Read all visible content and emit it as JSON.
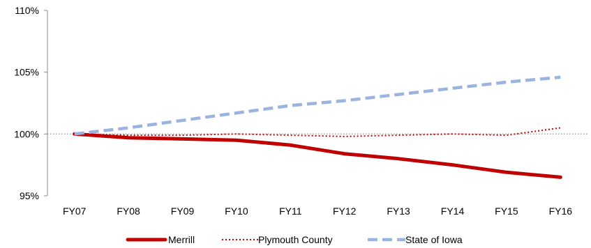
{
  "chart_data": {
    "type": "line",
    "title": "",
    "xlabel": "",
    "ylabel": "",
    "categories": [
      "FY07",
      "FY08",
      "FY09",
      "FY10",
      "FY11",
      "FY12",
      "FY13",
      "FY14",
      "FY15",
      "FY16"
    ],
    "ylim": [
      95,
      110
    ],
    "yticks": [
      95,
      100,
      105,
      110
    ],
    "ytick_labels": [
      "95%",
      "100%",
      "105%",
      "110%"
    ],
    "reference_line": 100,
    "grid": false,
    "legend_position": "bottom",
    "series": [
      {
        "name": "Merrill",
        "values": [
          100,
          99.7,
          99.6,
          99.5,
          99.1,
          98.4,
          98.0,
          97.5,
          96.9,
          96.5
        ],
        "color": "#c00000",
        "style": "solid"
      },
      {
        "name": "Plymouth County",
        "values": [
          100,
          99.9,
          99.9,
          100.0,
          99.9,
          99.8,
          99.9,
          100.0,
          99.9,
          100.5
        ],
        "color": "#c00000",
        "style": "dotted"
      },
      {
        "name": "State of Iowa",
        "values": [
          100,
          100.5,
          101.1,
          101.7,
          102.3,
          102.7,
          103.2,
          103.7,
          104.2,
          104.6
        ],
        "color": "#9bb3df",
        "style": "dashed"
      }
    ]
  }
}
